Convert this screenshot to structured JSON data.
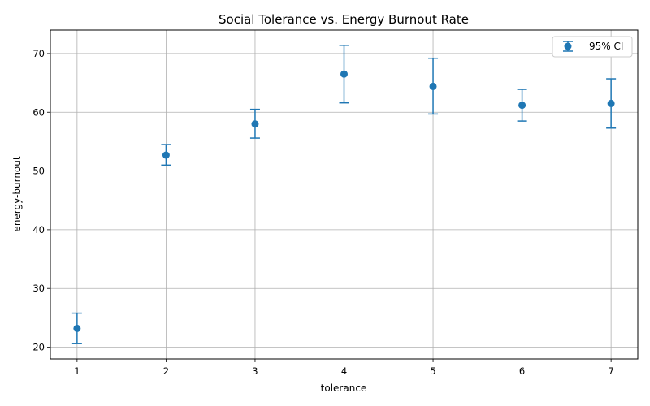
{
  "chart_data": {
    "type": "scatter",
    "title": "Social Tolerance vs. Energy Burnout Rate",
    "xlabel": "tolerance",
    "ylabel": "energy-burnout",
    "xlim": [
      0.7,
      7.3
    ],
    "ylim": [
      18,
      74
    ],
    "x_ticks": [
      1,
      2,
      3,
      4,
      5,
      6,
      7
    ],
    "y_ticks": [
      20,
      30,
      40,
      50,
      60,
      70
    ],
    "grid": true,
    "legend_position": "top-right",
    "series": [
      {
        "name": "95% CI",
        "color": "#1f77b4",
        "marker": "circle",
        "points": [
          {
            "x": 1,
            "y": 23.2,
            "low": 20.6,
            "high": 25.8
          },
          {
            "x": 2,
            "y": 52.7,
            "low": 51.0,
            "high": 54.5
          },
          {
            "x": 3,
            "y": 58.0,
            "low": 55.6,
            "high": 60.5
          },
          {
            "x": 4,
            "y": 66.5,
            "low": 61.6,
            "high": 71.4
          },
          {
            "x": 5,
            "y": 64.4,
            "low": 59.7,
            "high": 69.2
          },
          {
            "x": 6,
            "y": 61.2,
            "low": 58.5,
            "high": 63.9
          },
          {
            "x": 7,
            "y": 61.5,
            "low": 57.3,
            "high": 65.7
          }
        ]
      }
    ]
  }
}
